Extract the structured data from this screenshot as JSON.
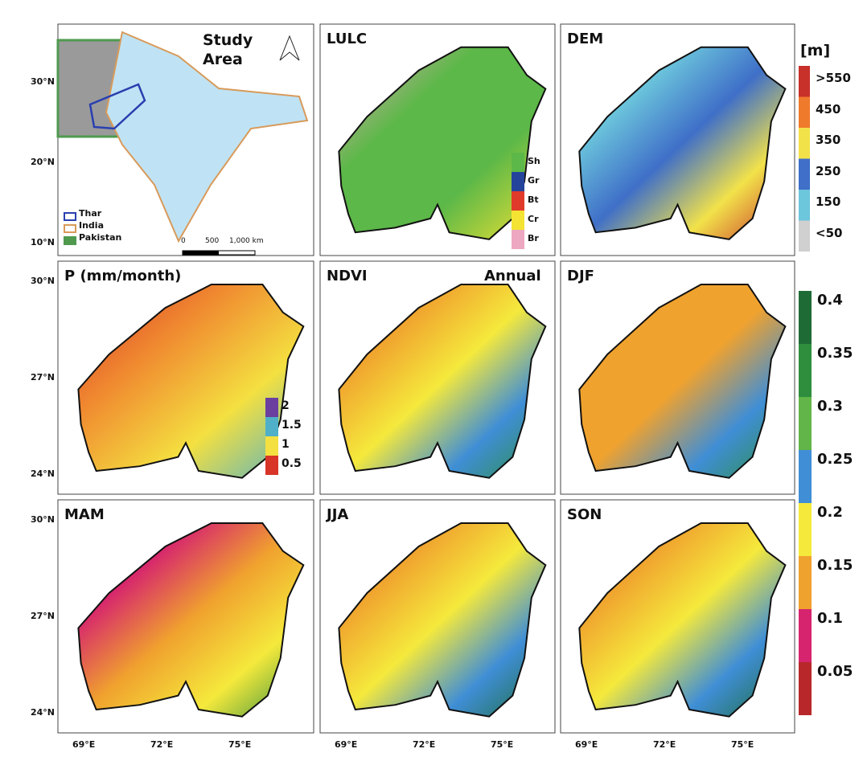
{
  "panels": [
    {
      "title": "Study Area"
    },
    {
      "title": "LULC"
    },
    {
      "title": "DEM"
    },
    {
      "title": "P (mm/month)"
    },
    {
      "title": "NDVI",
      "subtitle": "Annual"
    },
    {
      "title": "DJF"
    },
    {
      "title": "MAM"
    },
    {
      "title": "JJA"
    },
    {
      "title": "SON"
    }
  ],
  "study_area_legend": [
    {
      "label": "Thar",
      "color": "#2a3fb0"
    },
    {
      "label": "India",
      "color": "#d89a5a"
    },
    {
      "label": "Pakistan",
      "color": "#4f9a4f"
    }
  ],
  "scale_bar": [
    "0",
    "500",
    "1,000 km"
  ],
  "lulc_legend": [
    {
      "label": "Sh",
      "color": "#5cb848"
    },
    {
      "label": "Gr",
      "color": "#24449c"
    },
    {
      "label": "Bt",
      "color": "#e03a2a"
    },
    {
      "label": "Cr",
      "color": "#f4e332"
    },
    {
      "label": "Br",
      "color": "#eea7c0"
    }
  ],
  "dem_legend": {
    "title": "[m]",
    "labels": [
      ">550",
      "450",
      "350",
      "250",
      "150",
      "<50"
    ],
    "colors": [
      "#c8302a",
      "#ef7a2c",
      "#f2e24a",
      "#3f6fc8",
      "#6cc6dc",
      "#d0d0d0"
    ]
  },
  "p_legend": {
    "labels": [
      "2",
      "1.5",
      "1",
      "0.5"
    ],
    "colors": [
      "#6a3fa0",
      "#4fb0c8",
      "#f4e040",
      "#d83428"
    ]
  },
  "ndvi_legend": {
    "labels": [
      "0.4",
      "0.35",
      "0.3",
      "0.25",
      "0.2",
      "0.15",
      "0.1",
      "0.05"
    ],
    "colors": [
      "#1f6b36",
      "#2f8e3e",
      "#62b548",
      "#3f8ed6",
      "#f5e93c",
      "#f0a22e",
      "#d6246e",
      "#b8282a"
    ]
  },
  "lat_labels_row1": [
    "30°N",
    "20°N",
    "10°N"
  ],
  "lat_labels": [
    "30°N",
    "27°N",
    "24°N"
  ],
  "lon_labels": [
    "69°E",
    "72°E",
    "75°E"
  ]
}
